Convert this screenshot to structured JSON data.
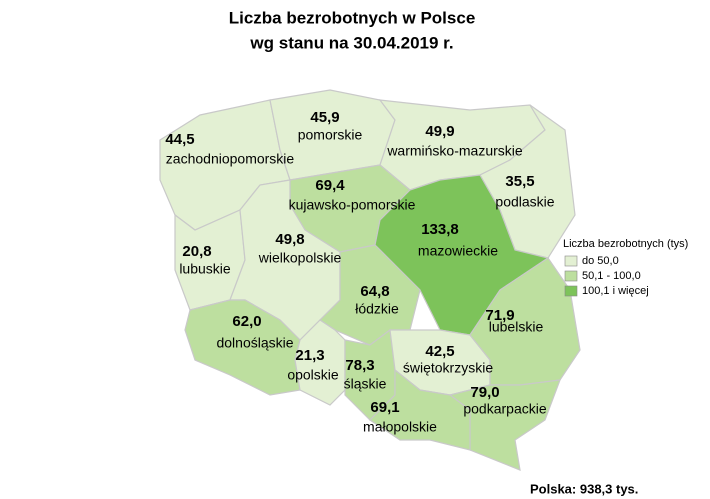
{
  "map": {
    "title": [
      "Liczba bezrobotnych w Polsce",
      "wg stanu na 30.04.2019 r."
    ],
    "regions": [
      {
        "name": "zachodniopomorskie",
        "value": 44.5,
        "value_label": "44,5"
      },
      {
        "name": "pomorskie",
        "value": 45.9,
        "value_label": "45,9"
      },
      {
        "name": "warmińsko-mazurskie",
        "value": 49.9,
        "value_label": "49,9"
      },
      {
        "name": "podlaskie",
        "value": 35.5,
        "value_label": "35,5"
      },
      {
        "name": "kujawsko-pomorskie",
        "value": 69.4,
        "value_label": "69,4"
      },
      {
        "name": "mazowieckie",
        "value": 133.8,
        "value_label": "133,8"
      },
      {
        "name": "lubuskie",
        "value": 20.8,
        "value_label": "20,8"
      },
      {
        "name": "wielkopolskie",
        "value": 49.8,
        "value_label": "49,8"
      },
      {
        "name": "łódzkie",
        "value": 64.8,
        "value_label": "64,8"
      },
      {
        "name": "dolnośląskie",
        "value": 62.0,
        "value_label": "62,0"
      },
      {
        "name": "opolskie",
        "value": 21.3,
        "value_label": "21,3"
      },
      {
        "name": "śląskie",
        "value": 78.3,
        "value_label": "78,3"
      },
      {
        "name": "świętokrzyskie",
        "value": 42.5,
        "value_label": "42,5"
      },
      {
        "name": "lubelskie",
        "value": 71.9,
        "value_label": "71,9"
      },
      {
        "name": "podkarpackie",
        "value": 79.0,
        "value_label": "79,0"
      },
      {
        "name": "małopolskie",
        "value": 69.1,
        "value_label": "69,1"
      }
    ],
    "legend": {
      "title": "Liczba bezrobotnych (tys)",
      "classes": [
        {
          "label": "do 50,0",
          "max": 50,
          "color": "#e3f0d3"
        },
        {
          "label": "50,1 - 100,0",
          "max": 100,
          "color": "#bddf9f"
        },
        {
          "label": "100,1 i więcej",
          "max": null,
          "color": "#7dc35a"
        }
      ]
    },
    "footer": "Polska: 938,3 tys."
  }
}
